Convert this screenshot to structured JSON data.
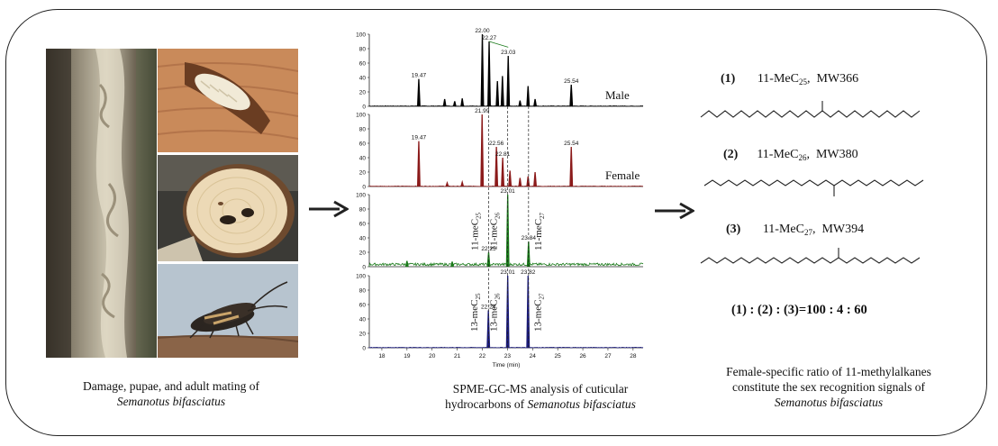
{
  "panel_left": {
    "caption_line1": "Damage, pupae, and adult mating  of",
    "caption_line2": "Semanotus bifasciatus",
    "photos": [
      {
        "name": "damaged-trunk-photo"
      },
      {
        "name": "pupa-photo"
      },
      {
        "name": "wood-cross-section-photo"
      },
      {
        "name": "adult-mating-photo"
      }
    ]
  },
  "panel_middle": {
    "caption_line1": "SPME-GC-MS analysis  of cuticular",
    "caption_line2_prefix": "hydrocarbons  of ",
    "caption_line2_italic": "Semanotus bifasciatus",
    "x_axis_label": "Time (min)",
    "x_ticks": [
      "18",
      "19",
      "20",
      "21",
      "22",
      "23",
      "24",
      "25",
      "26",
      "27",
      "28"
    ],
    "y_ticks": [
      "0",
      "20",
      "40",
      "60",
      "80",
      "100"
    ]
  },
  "chart_data": {
    "type": "line",
    "xlabel": "Time (min)",
    "xlim": [
      17.5,
      28.4
    ],
    "ylim": [
      0,
      100
    ],
    "series": [
      {
        "name": "Male",
        "color": "#000000",
        "peaks": [
          [
            19.47,
            38
          ],
          [
            20.5,
            10
          ],
          [
            20.9,
            7
          ],
          [
            21.2,
            11
          ],
          [
            22.0,
            100
          ],
          [
            22.27,
            90
          ],
          [
            22.6,
            35
          ],
          [
            22.8,
            42
          ],
          [
            23.03,
            70
          ],
          [
            23.5,
            8
          ],
          [
            23.82,
            28
          ],
          [
            24.1,
            10
          ],
          [
            25.54,
            30
          ]
        ],
        "peak_labels": [
          {
            "x": 19.47,
            "y": 38,
            "text": "19.47"
          },
          {
            "x": 22.0,
            "y": 100,
            "text": "22.00"
          },
          {
            "x": 22.27,
            "y": 90,
            "text": "22.27"
          },
          {
            "x": 23.03,
            "y": 70,
            "text": "23.03"
          },
          {
            "x": 25.54,
            "y": 30,
            "text": "25.54"
          }
        ],
        "trace_label": "Male"
      },
      {
        "name": "Female",
        "color": "#8b1a1a",
        "peaks": [
          [
            19.47,
            63
          ],
          [
            20.6,
            5
          ],
          [
            21.2,
            6
          ],
          [
            21.99,
            100
          ],
          [
            22.56,
            55
          ],
          [
            22.81,
            40
          ],
          [
            23.1,
            22
          ],
          [
            23.5,
            12
          ],
          [
            23.82,
            14
          ],
          [
            24.1,
            20
          ],
          [
            25.54,
            55
          ]
        ],
        "peak_labels": [
          {
            "x": 19.47,
            "y": 63,
            "text": "19.47"
          },
          {
            "x": 21.99,
            "y": 100,
            "text": "21.99"
          },
          {
            "x": 22.56,
            "y": 55,
            "text": "22.56"
          },
          {
            "x": 22.81,
            "y": 40,
            "text": "22.81"
          },
          {
            "x": 25.54,
            "y": 55,
            "text": "25.54"
          }
        ],
        "trace_label": "Female"
      },
      {
        "name": "11-methylalkane standards",
        "color": "#1a7a1a",
        "peaks": [
          [
            19.0,
            8
          ],
          [
            20.8,
            7
          ],
          [
            22.25,
            20
          ],
          [
            23.01,
            100
          ],
          [
            23.84,
            35
          ]
        ],
        "peak_labels": [
          {
            "x": 22.25,
            "y": 20,
            "text": "22.25"
          },
          {
            "x": 23.01,
            "y": 100,
            "text": "23.01"
          },
          {
            "x": 23.84,
            "y": 35,
            "text": "23.84"
          }
        ],
        "vertical_labels": [
          {
            "x": 22.25,
            "main": "11-meC",
            "sub": "25"
          },
          {
            "x": 23.01,
            "main": "11-meC",
            "sub": "26"
          },
          {
            "x": 23.84,
            "main": "11-meC",
            "sub": "27"
          }
        ]
      },
      {
        "name": "13-methylalkane standards",
        "color": "#1a1a7a",
        "peaks": [
          [
            22.24,
            52
          ],
          [
            23.01,
            100
          ],
          [
            23.82,
            100
          ]
        ],
        "peak_labels": [
          {
            "x": 22.24,
            "y": 52,
            "text": "22.24"
          },
          {
            "x": 23.01,
            "y": 100,
            "text": "23.01"
          },
          {
            "x": 23.82,
            "y": 100,
            "text": "23.82"
          }
        ],
        "vertical_labels": [
          {
            "x": 22.24,
            "main": "13-meC",
            "sub": "25"
          },
          {
            "x": 23.01,
            "main": "13-meC",
            "sub": "26"
          },
          {
            "x": 23.82,
            "main": "13-meC",
            "sub": "27"
          }
        ]
      }
    ]
  },
  "panel_right": {
    "compounds": [
      {
        "num": "(1)",
        "name_main": "11-MeC",
        "name_sub": "25",
        "mw": "MW366"
      },
      {
        "num": "(2)",
        "name_main": "11-MeC",
        "name_sub": "26",
        "mw": "MW380"
      },
      {
        "num": "(3)",
        "name_main": "11-MeC",
        "name_sub": "27",
        "mw": "MW394"
      }
    ],
    "ratio": "(1) : (2) : (3)=100 : 4 : 60",
    "caption_line1": "Female-specific ratio of 11-methylalkanes",
    "caption_line2": "constitute  the sex recognition signals  of",
    "caption_line3": "Semanotus bifasciatus"
  }
}
